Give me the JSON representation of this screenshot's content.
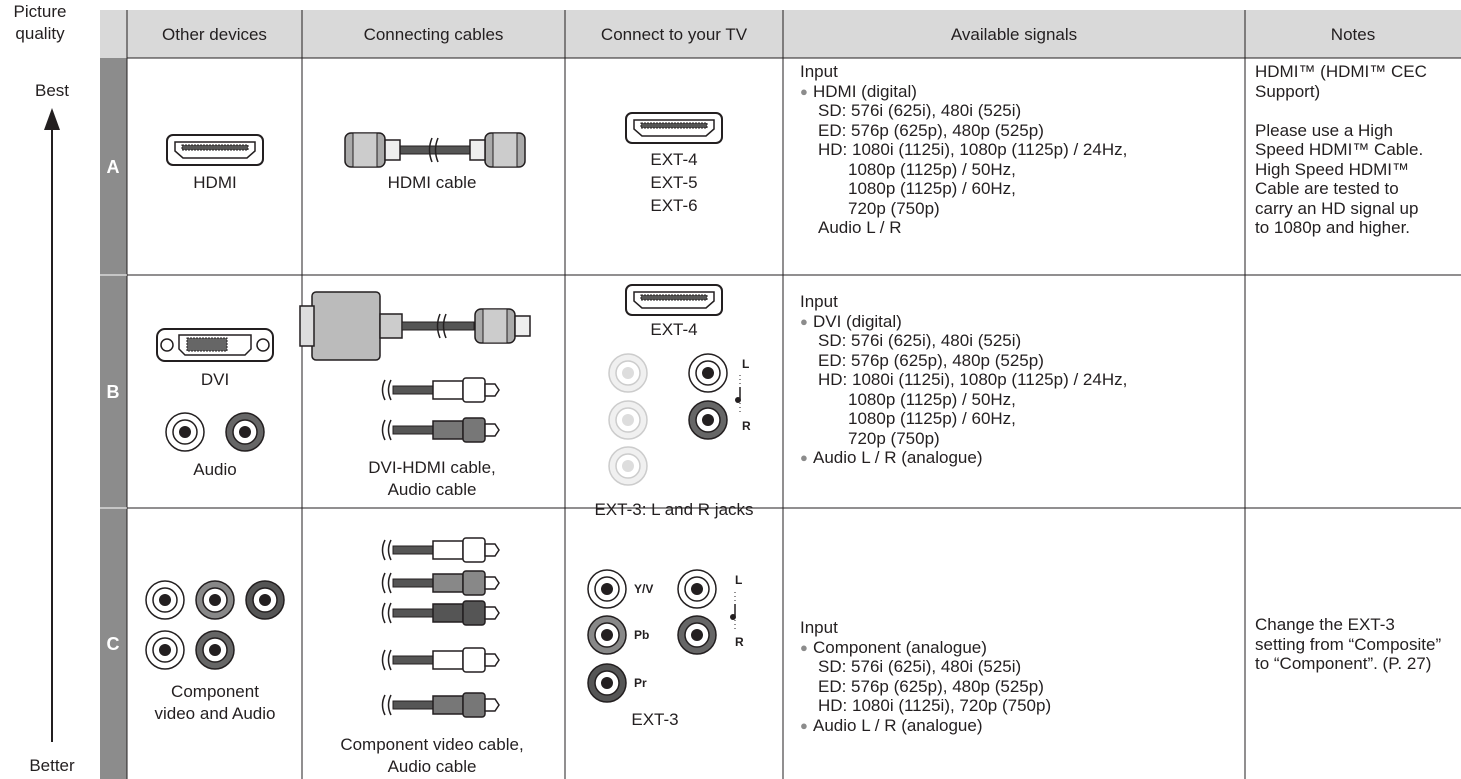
{
  "side": {
    "title": [
      "Picture",
      "quality"
    ],
    "top": "Best",
    "bottom": "Better"
  },
  "table": {
    "headers": [
      "Other devices",
      "Connecting cables",
      "Connect to your TV",
      "Available signals",
      "Notes"
    ],
    "rows": [
      {
        "label": "A",
        "devices": [
          [
            "HDMI"
          ]
        ],
        "cables": [
          "HDMI cable"
        ],
        "tv": [
          "EXT-4",
          "EXT-5",
          "EXT-6"
        ],
        "signals": {
          "heading": "Input",
          "items": [
            {
              "text": "HDMI (digital)",
              "lines": [
                "SD: 576i (625i), 480i (525i)",
                "ED: 576p (625p), 480p (525p)",
                [
                  "HD: 1080i (1125i), 1080p (1125p) / 24Hz,",
                  "1080p (1125p) / 50Hz,",
                  "1080p (1125p) / 60Hz,",
                  "720p (750p)"
                ],
                "Audio L / R"
              ]
            }
          ]
        },
        "notes": [
          [
            "HDMI™ (HDMI™ CEC",
            "Support)"
          ],
          [
            "Please use a High",
            "Speed HDMI™ Cable.",
            "High Speed HDMI™",
            "Cable are tested to",
            "carry an HD signal up",
            "to 1080p and higher."
          ]
        ]
      },
      {
        "label": "B",
        "devices": [
          [
            "DVI"
          ],
          [
            "Audio"
          ]
        ],
        "cables": [
          "DVI-HDMI cable,",
          "Audio cable"
        ],
        "tv": [
          "EXT-4",
          "EXT-3: L and R jacks"
        ],
        "jacks": [
          "L",
          "R"
        ],
        "signals": {
          "heading": "Input",
          "items": [
            {
              "text": "DVI (digital)",
              "lines": [
                "SD: 576i (625i), 480i (525i)",
                "ED: 576p (625p), 480p (525p)",
                [
                  "HD: 1080i (1125i), 1080p (1125p) / 24Hz,",
                  "1080p (1125p) / 50Hz,",
                  "1080p (1125p) / 60Hz,",
                  "720p (750p)"
                ]
              ]
            },
            {
              "text": "Audio L / R (analogue)"
            }
          ]
        },
        "notes": []
      },
      {
        "label": "C",
        "devices": [
          [
            "Component",
            "video and Audio"
          ]
        ],
        "cables": [
          "Component video cable,",
          "Audio cable"
        ],
        "tv": [
          "EXT-3"
        ],
        "jacks": [
          "Y/V",
          "Pb",
          "Pr",
          "L",
          "R"
        ],
        "signals": {
          "heading": "Input",
          "items": [
            {
              "text": "Component (analogue)",
              "lines": [
                "SD: 576i (625i), 480i (525i)",
                "ED: 576p (625p), 480p (525p)",
                "HD: 1080i (1125i), 720p (750p)"
              ]
            },
            {
              "text": "Audio L / R (analogue)"
            }
          ]
        },
        "notes": [
          [
            "Change the EXT-3",
            "setting from “Composite”",
            "to “Component”. (P. 27)"
          ]
        ]
      }
    ]
  }
}
